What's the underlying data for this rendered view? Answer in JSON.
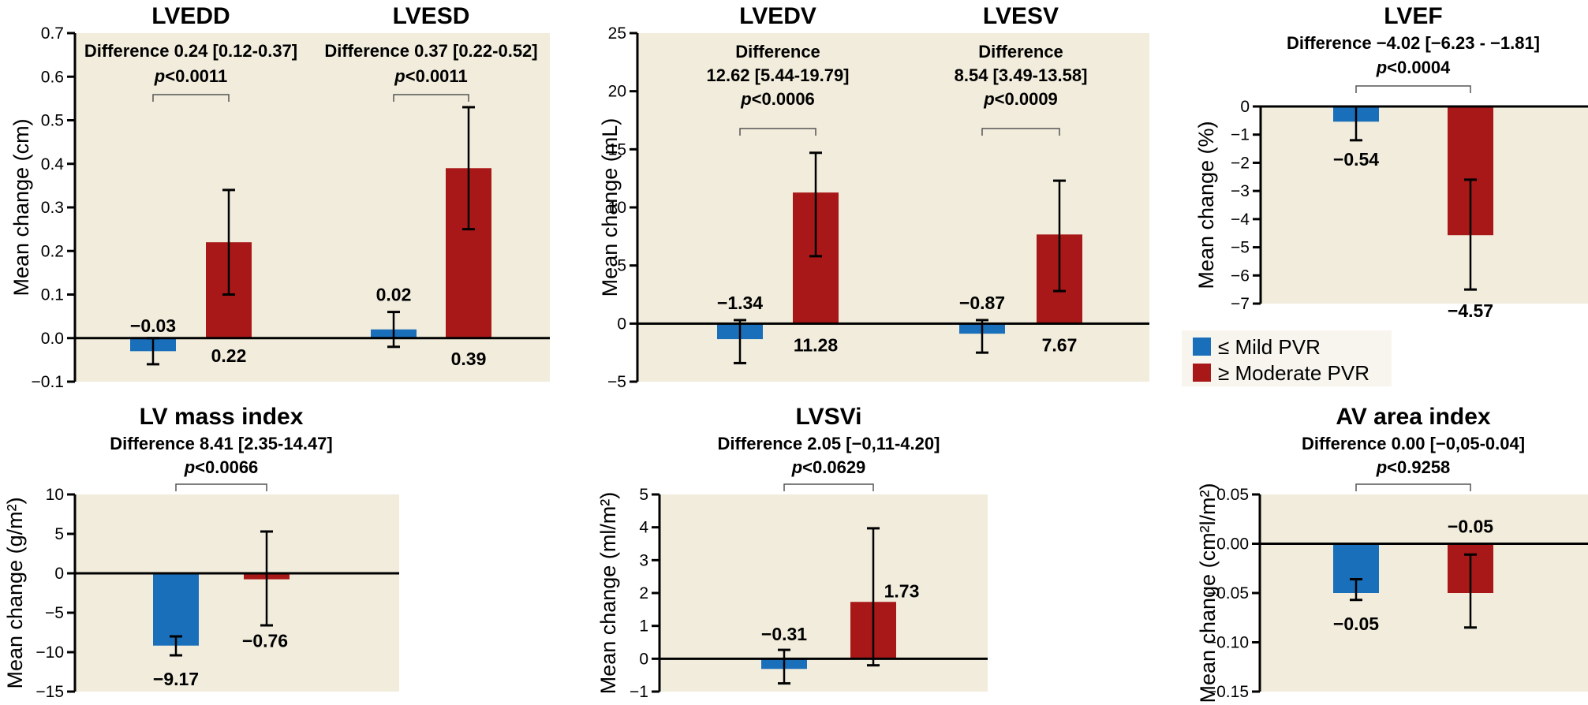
{
  "colors": {
    "mild": "#1a6fbb",
    "moderate": "#a81818",
    "plot_bg": "#f1ecdb",
    "legend_bg": "#f7f5ee",
    "axis": "#000000",
    "bracket": "#555555"
  },
  "legend": {
    "position": "right-middle",
    "items": [
      {
        "label": "≤ Mild PVR",
        "series": "mild"
      },
      {
        "label": "≥ Moderate PVR",
        "series": "moderate"
      }
    ]
  },
  "chart_data": [
    {
      "type": "bar",
      "ylabel": "Mean change (cm)",
      "ylim": [
        -0.1,
        0.7
      ],
      "yticks": [
        "0.7",
        "0.6",
        "0.5",
        "0.4",
        "0.3",
        "0.2",
        "0.1",
        "0.0",
        "−0.1"
      ],
      "ytick_values": [
        0.7,
        0.6,
        0.5,
        0.4,
        0.3,
        0.2,
        0.1,
        0.0,
        -0.1
      ],
      "groups": [
        {
          "title": "LVEDD",
          "annotation": [
            "Difference 0.24 [0.12-0.37]",
            "p<0.0011"
          ],
          "bars": [
            {
              "series": "mild",
              "value": -0.03,
              "label": "−0.03",
              "err": [
                -0.06,
                0.0
              ]
            },
            {
              "series": "moderate",
              "value": 0.22,
              "label": "0.22",
              "err": [
                0.1,
                0.34
              ]
            }
          ]
        },
        {
          "title": "LVESD",
          "annotation": [
            "Difference 0.37 [0.22-0.52]",
            "p<0.0011"
          ],
          "bars": [
            {
              "series": "mild",
              "value": 0.02,
              "label": "0.02",
              "err": [
                -0.02,
                0.06
              ]
            },
            {
              "series": "moderate",
              "value": 0.39,
              "label": "0.39",
              "err": [
                0.25,
                0.53
              ]
            }
          ]
        }
      ]
    },
    {
      "type": "bar",
      "ylabel": "Mean change (mL)",
      "ylim": [
        -5,
        25
      ],
      "yticks": [
        "25",
        "20",
        "15",
        "10",
        "5",
        "0",
        "−5"
      ],
      "ytick_values": [
        25,
        20,
        15,
        10,
        5,
        0,
        -5
      ],
      "groups": [
        {
          "title": "LVEDV",
          "annotation": [
            "Difference",
            "12.62 [5.44-19.79]",
            "p<0.0006"
          ],
          "bars": [
            {
              "series": "mild",
              "value": -1.34,
              "label": "−1.34",
              "err": [
                -3.4,
                0.3
              ]
            },
            {
              "series": "moderate",
              "value": 11.28,
              "label": "11.28",
              "err": [
                5.8,
                14.7
              ]
            }
          ]
        },
        {
          "title": "LVESV",
          "annotation": [
            "Difference",
            "8.54 [3.49-13.58]",
            "p<0.0009"
          ],
          "bars": [
            {
              "series": "mild",
              "value": -0.87,
              "label": "−0.87",
              "err": [
                -2.5,
                0.3
              ]
            },
            {
              "series": "moderate",
              "value": 7.67,
              "label": "7.67",
              "err": [
                2.8,
                12.3
              ]
            }
          ]
        }
      ]
    },
    {
      "type": "bar",
      "title": "LVEF",
      "ylabel": "Mean change (%)",
      "ylim": [
        -7,
        0
      ],
      "yticks": [
        "0",
        "−1",
        "−2",
        "−3",
        "−4",
        "−5",
        "−6",
        "−7"
      ],
      "ytick_values": [
        0,
        -1,
        -2,
        -3,
        -4,
        -5,
        -6,
        -7
      ],
      "groups": [
        {
          "title": "LVEF",
          "annotation": [
            "Difference −4.02 [−6.23 - −1.81]",
            "p<0.0004"
          ],
          "bars": [
            {
              "series": "mild",
              "value": -0.54,
              "label": "−0.54",
              "err": [
                -1.2,
                0.0
              ]
            },
            {
              "series": "moderate",
              "value": -4.57,
              "label": "−4.57",
              "err": [
                -6.5,
                -2.6
              ]
            }
          ]
        }
      ]
    },
    {
      "type": "bar",
      "title": "LV mass index",
      "ylabel": "Mean change (g/m²)",
      "ylim": [
        -15,
        10
      ],
      "yticks": [
        "10",
        "5",
        "0",
        "−5",
        "−10",
        "−15"
      ],
      "ytick_values": [
        10,
        5,
        0,
        -5,
        -10,
        -15
      ],
      "groups": [
        {
          "title": "LV mass index",
          "annotation": [
            "Difference 8.41 [2.35-14.47]",
            "p<0.0066"
          ],
          "bars": [
            {
              "series": "mild",
              "value": -9.17,
              "label": "−9.17",
              "err": [
                -10.4,
                -8.0
              ]
            },
            {
              "series": "moderate",
              "value": -0.76,
              "label": "−0.76",
              "err": [
                -6.6,
                5.3
              ]
            }
          ]
        }
      ]
    },
    {
      "type": "bar",
      "title": "LVSVi",
      "ylabel": "Mean change (ml/m²)",
      "ylim": [
        -1,
        5
      ],
      "yticks": [
        "5",
        "4",
        "3",
        "2",
        "1",
        "0",
        "−1"
      ],
      "ytick_values": [
        5,
        4,
        3,
        2,
        1,
        0,
        -1
      ],
      "groups": [
        {
          "title": "LVSVi",
          "annotation": [
            "Difference 2.05 [−0,11-4.20]",
            "p<0.0629"
          ],
          "bars": [
            {
              "series": "mild",
              "value": -0.31,
              "label": "−0.31",
              "err": [
                -0.75,
                0.27
              ]
            },
            {
              "series": "moderate",
              "value": 1.73,
              "label": "1.73",
              "err": [
                -0.2,
                3.97
              ]
            }
          ]
        }
      ]
    },
    {
      "type": "bar",
      "title": "AV area index",
      "ylabel": "Mean change (cm²l/m²)",
      "ylim": [
        -0.15,
        0.05
      ],
      "yticks": [
        "0.05",
        "0.00",
        "−0.05",
        "−0.10",
        "−0.15"
      ],
      "ytick_values": [
        0.05,
        0.0,
        -0.05,
        -0.1,
        -0.15
      ],
      "groups": [
        {
          "title": "AV area index",
          "annotation": [
            "Difference 0.00 [−0,05-0.04]",
            "p<0.9258"
          ],
          "bars": [
            {
              "series": "mild",
              "value": -0.05,
              "label": "−0.05",
              "err": [
                -0.057,
                -0.036
              ]
            },
            {
              "series": "moderate",
              "value": -0.05,
              "label": "−0.05",
              "err": [
                -0.085,
                -0.011
              ]
            }
          ]
        }
      ]
    }
  ]
}
